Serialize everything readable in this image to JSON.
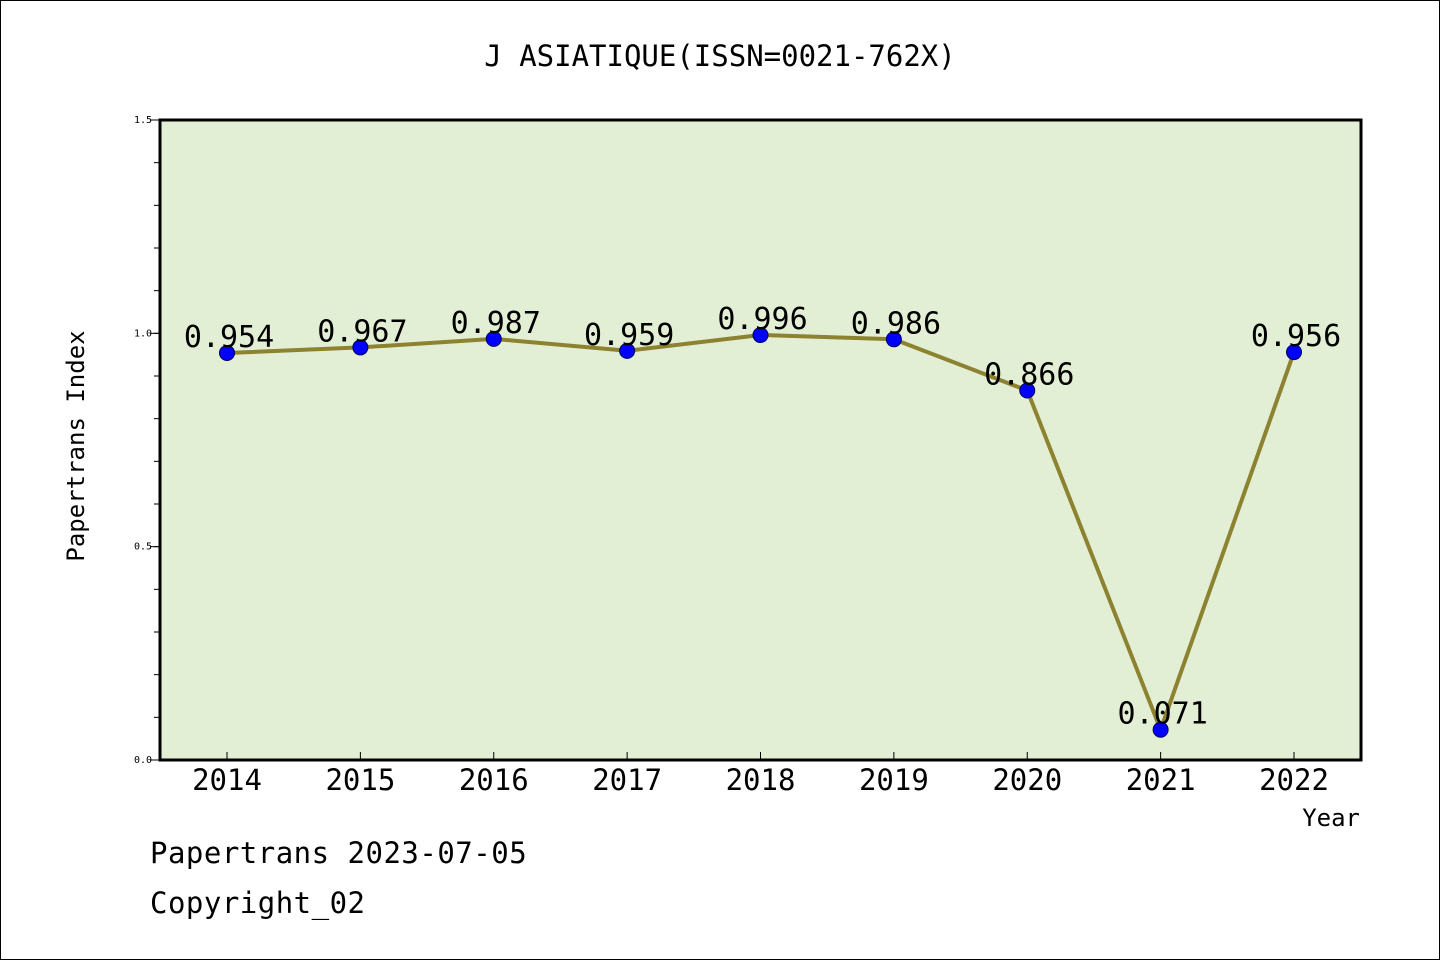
{
  "chart_data": {
    "type": "line",
    "title": "J ASIATIQUE(ISSN=0021-762X)",
    "xlabel": "Year",
    "ylabel": "Papertrans Index",
    "categories": [
      "2014",
      "2015",
      "2016",
      "2017",
      "2018",
      "2019",
      "2020",
      "2021",
      "2022"
    ],
    "series": [
      {
        "values": [
          0.954,
          0.967,
          0.987,
          0.959,
          0.996,
          0.986,
          0.866,
          0.071,
          0.956
        ],
        "data_labels": [
          "0.954",
          "0.967",
          "0.987",
          "0.959",
          "0.996",
          "0.986",
          "0.866",
          "0.071",
          "0.956"
        ]
      }
    ],
    "ylim": [
      0,
      1.5
    ],
    "yticks": [
      "0.0",
      "0.5",
      "1.0",
      "1.5"
    ],
    "grid": false,
    "colors": {
      "plot_background": "#e2efd5",
      "line": "#8c8230",
      "marker": "#0000ff"
    }
  },
  "footer": {
    "line1": "Papertrans 2023-07-05",
    "line2": "Copyright_02"
  }
}
